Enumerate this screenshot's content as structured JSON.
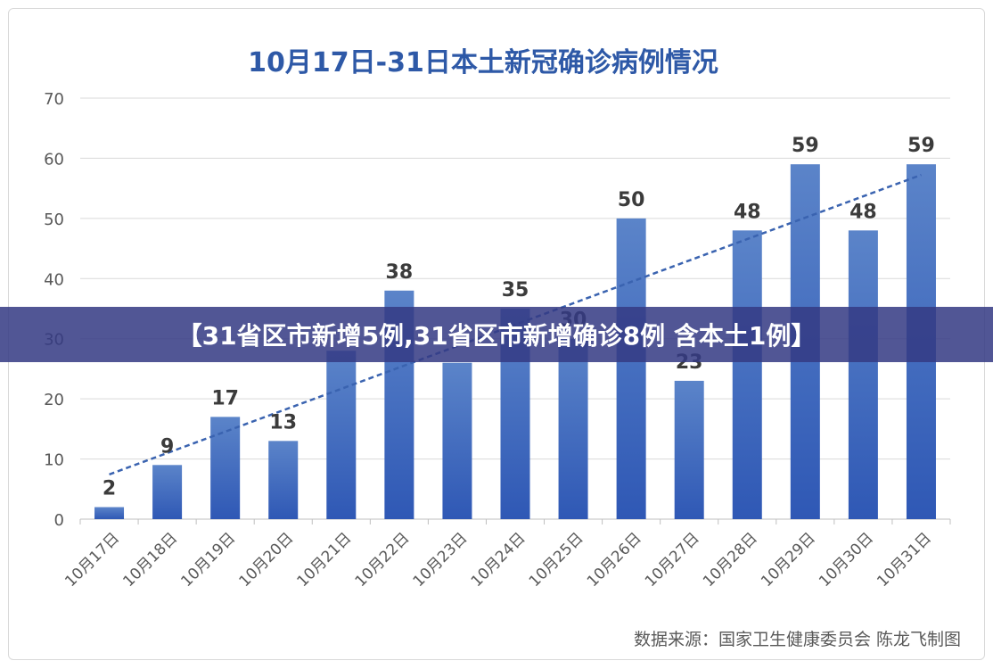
{
  "chart_data": {
    "type": "bar",
    "title": "10月17日-31日本土新冠确诊病例情况",
    "categories": [
      "10月17日",
      "10月18日",
      "10月19日",
      "10月20日",
      "10月21日",
      "10月22日",
      "10月23日",
      "10月24日",
      "10月25日",
      "10月26日",
      "10月27日",
      "10月28日",
      "10月29日",
      "10月30日",
      "10月31日"
    ],
    "values": [
      2,
      9,
      17,
      13,
      28,
      38,
      26,
      35,
      30,
      50,
      23,
      48,
      59,
      48,
      59
    ],
    "data_labels": [
      "2",
      "9",
      "17",
      "13",
      "",
      "38",
      "",
      "35",
      "30",
      "50",
      "23",
      "48",
      "59",
      "48",
      "59"
    ],
    "ylim": [
      0,
      70
    ],
    "yticks": [
      0,
      10,
      20,
      30,
      40,
      50,
      60,
      70
    ],
    "trendline": {
      "style": "dashed",
      "type": "linear"
    },
    "grid": true,
    "legend": "none",
    "colors": {
      "bar_top": "#5b84c9",
      "bar_bottom": "#2f58b5",
      "trend": "#3a63b0",
      "title": "#2e59a7",
      "label": "#3b3b3b",
      "axis_text": "#595959",
      "grid": "#d9d9d9"
    }
  },
  "banner": {
    "text": "【31省区市新增5例,31省区市新增确诊8例 含本土1例】"
  },
  "source": {
    "text": "数据来源：国家卫生健康委员会    陈龙飞制图"
  }
}
